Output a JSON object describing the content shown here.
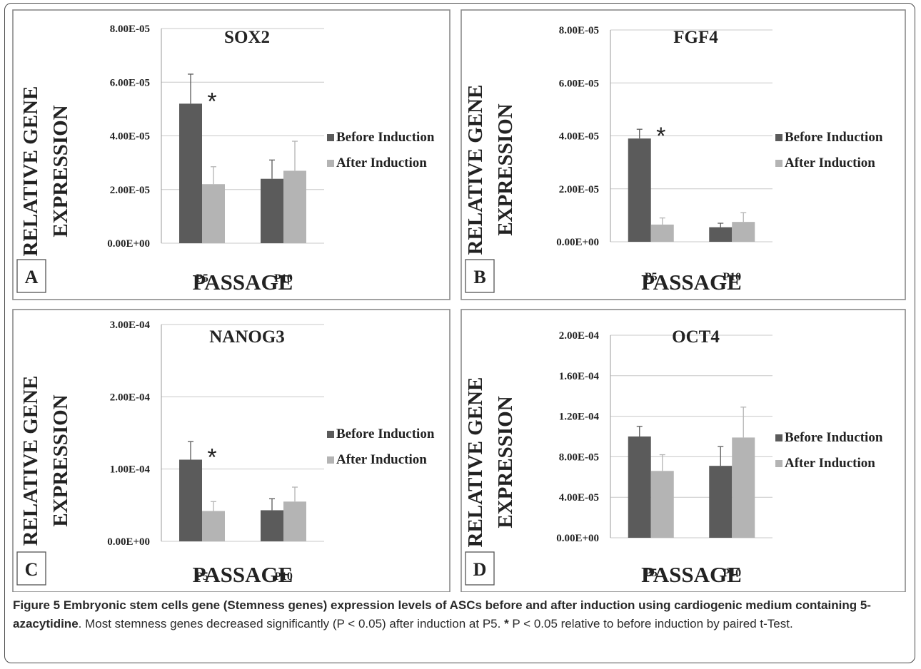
{
  "chart_data": [
    {
      "panel_label": "A",
      "type": "bar",
      "title": "SOX2",
      "ylabel": "RELATIVE GENE EXPRESSION",
      "xlabel": "PASSAGE",
      "categories": [
        "P5",
        "P10"
      ],
      "ytick_labels": [
        "0.00E+00",
        "2.00E-05",
        "4.00E-05",
        "6.00E-05",
        "8.00E-05"
      ],
      "ylim": [
        0,
        8e-05
      ],
      "series": [
        {
          "name": "Before Induction",
          "values": [
            5.2e-05,
            2.4e-05
          ],
          "errors": [
            1.1e-05,
            7e-06
          ]
        },
        {
          "name": "After Induction",
          "values": [
            2.2e-05,
            2.7e-05
          ],
          "errors": [
            6.5e-06,
            1.1e-05
          ]
        }
      ],
      "significance": [
        {
          "category": "P5",
          "mark": "*"
        }
      ],
      "legend_position": "right"
    },
    {
      "panel_label": "B",
      "type": "bar",
      "title": "FGF4",
      "ylabel": "RELATIVE GENE EXPRESSION",
      "xlabel": "PASSAGE",
      "categories": [
        "P5",
        "P10"
      ],
      "ytick_labels": [
        "0.00E+00",
        "2.00E-05",
        "4.00E-05",
        "6.00E-05",
        "8.00E-05"
      ],
      "ylim": [
        0,
        8e-05
      ],
      "series": [
        {
          "name": "Before Induction",
          "values": [
            3.9e-05,
            5.5e-06
          ],
          "errors": [
            3.5e-06,
            1.5e-06
          ]
        },
        {
          "name": "After Induction",
          "values": [
            6.5e-06,
            7.5e-06
          ],
          "errors": [
            2.5e-06,
            3.5e-06
          ]
        }
      ],
      "significance": [
        {
          "category": "P5",
          "mark": "*"
        }
      ],
      "legend_position": "right"
    },
    {
      "panel_label": "C",
      "type": "bar",
      "title": "NANOG3",
      "ylabel": "RELATIVE GENE EXPRESSION",
      "xlabel": "PASSAGE",
      "categories": [
        "P5",
        "P10"
      ],
      "ytick_labels": [
        "0.00E+00",
        "1.00E-04",
        "2.00E-04",
        "3.00E-04"
      ],
      "ylim": [
        0,
        0.0003
      ],
      "series": [
        {
          "name": "Before Induction",
          "values": [
            0.000113,
            4.3e-05
          ],
          "errors": [
            2.5e-05,
            1.6e-05
          ]
        },
        {
          "name": "After Induction",
          "values": [
            4.2e-05,
            5.5e-05
          ],
          "errors": [
            1.3e-05,
            2e-05
          ]
        }
      ],
      "significance": [
        {
          "category": "P5",
          "mark": "*"
        }
      ],
      "legend_position": "right"
    },
    {
      "panel_label": "D",
      "type": "bar",
      "title": "OCT4",
      "ylabel": "RELATIVE GENE EXPRESSION",
      "xlabel": "PASSAGE",
      "categories": [
        "P5",
        "P10"
      ],
      "ytick_labels": [
        "0.00E+00",
        "4.00E-05",
        "8.00E-05",
        "1.20E-04",
        "1.60E-04",
        "2.00E-04"
      ],
      "ylim": [
        0,
        0.0002
      ],
      "series": [
        {
          "name": "Before Induction",
          "values": [
            0.0001,
            7.1e-05
          ],
          "errors": [
            1e-05,
            1.9e-05
          ]
        },
        {
          "name": "After Induction",
          "values": [
            6.6e-05,
            9.9e-05
          ],
          "errors": [
            1.6e-05,
            3e-05
          ]
        }
      ],
      "significance": [],
      "legend_position": "right"
    }
  ],
  "colors": {
    "before": "#5b5b5b",
    "after": "#b4b4b4",
    "gridline": "#c8c8c8",
    "frame": "#8a8a8a"
  },
  "caption": {
    "title": "Figure 5 Embryonic stem cells gene (Stemness genes) expression levels of ASCs before and after induction using cardiogenic medium containing 5-azacytidine",
    "body": ". Most stemness genes decreased significantly (P < 0.05) after induction at P5. ",
    "star": "*",
    "footnote": " P < 0.05 relative to before induction by paired t-Test."
  }
}
